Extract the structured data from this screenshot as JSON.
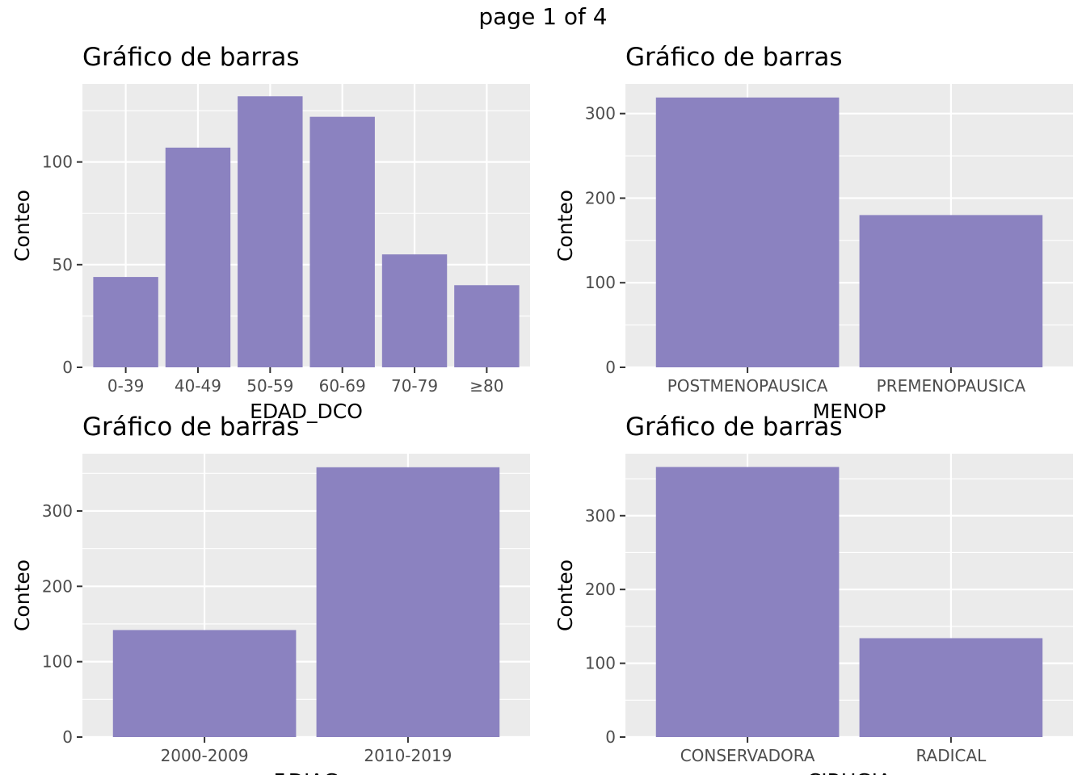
{
  "page_label": "page 1 of 4",
  "colors": {
    "bar": "#8b82c0",
    "panel_bg": "#ebebeb",
    "grid": "#ffffff",
    "tick_text": "#4d4d4d"
  },
  "chart_data": [
    {
      "type": "bar",
      "title": "Gráfico de barras",
      "xlabel": "EDAD_DCO",
      "ylabel": "Conteo",
      "categories": [
        "0-39",
        "40-49",
        "50-59",
        "60-69",
        "70-79",
        "≥80"
      ],
      "values": [
        44,
        107,
        132,
        122,
        55,
        40
      ],
      "yticks": [
        0,
        50,
        100
      ],
      "ytick_labels": [
        "0",
        "50",
        "100"
      ],
      "ylim": [
        0,
        138
      ],
      "grid": true
    },
    {
      "type": "bar",
      "title": "Gráfico de barras",
      "xlabel": "MENOP",
      "ylabel": "Conteo",
      "categories": [
        "POSTMENOPAUSICA",
        "PREMENOPAUSICA"
      ],
      "values": [
        319,
        180
      ],
      "yticks": [
        0,
        100,
        200,
        300
      ],
      "ytick_labels": [
        "0",
        "100",
        "200",
        "300"
      ],
      "ylim": [
        0,
        335
      ],
      "grid": true
    },
    {
      "type": "bar",
      "title": "Gráfico de barras",
      "xlabel": "F.DIAG",
      "ylabel": "Conteo",
      "categories": [
        "2000-2009",
        "2010-2019"
      ],
      "values": [
        142,
        358
      ],
      "yticks": [
        0,
        100,
        200,
        300
      ],
      "ytick_labels": [
        "0",
        "100",
        "200",
        "300"
      ],
      "ylim": [
        0,
        376
      ],
      "grid": true
    },
    {
      "type": "bar",
      "title": "Gráfico de barras",
      "xlabel": "CIRUGIA",
      "ylabel": "Conteo",
      "categories": [
        "CONSERVADORA",
        "RADICAL"
      ],
      "values": [
        366,
        134
      ],
      "yticks": [
        0,
        100,
        200,
        300
      ],
      "ytick_labels": [
        "0",
        "100",
        "200",
        "300"
      ],
      "ylim": [
        0,
        384
      ],
      "grid": true
    }
  ]
}
